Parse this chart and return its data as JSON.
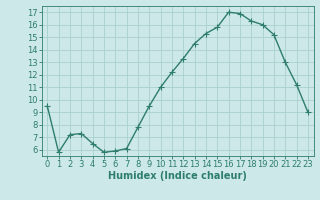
{
  "x": [
    0,
    1,
    2,
    3,
    4,
    5,
    6,
    7,
    8,
    9,
    10,
    11,
    12,
    13,
    14,
    15,
    16,
    17,
    18,
    19,
    20,
    21,
    22,
    23
  ],
  "y": [
    9.5,
    5.8,
    7.2,
    7.3,
    6.5,
    5.8,
    5.9,
    6.1,
    7.8,
    9.5,
    11.0,
    12.2,
    13.3,
    14.5,
    15.3,
    15.8,
    17.0,
    16.9,
    16.3,
    16.0,
    15.2,
    13.0,
    11.2,
    9.0
  ],
  "line_color": "#2e7d6e",
  "marker": "+",
  "markersize": 4,
  "linewidth": 1.0,
  "background_color": "#cce8e8",
  "grid_color": "#aacfcf",
  "xlabel": "Humidex (Indice chaleur)",
  "xlabel_fontsize": 7,
  "tick_fontsize": 6,
  "ylim": [
    5.5,
    17.5
  ],
  "yticks": [
    6,
    7,
    8,
    9,
    10,
    11,
    12,
    13,
    14,
    15,
    16,
    17
  ],
  "xlim": [
    -0.5,
    23.5
  ],
  "xticks": [
    0,
    1,
    2,
    3,
    4,
    5,
    6,
    7,
    8,
    9,
    10,
    11,
    12,
    13,
    14,
    15,
    16,
    17,
    18,
    19,
    20,
    21,
    22,
    23
  ]
}
